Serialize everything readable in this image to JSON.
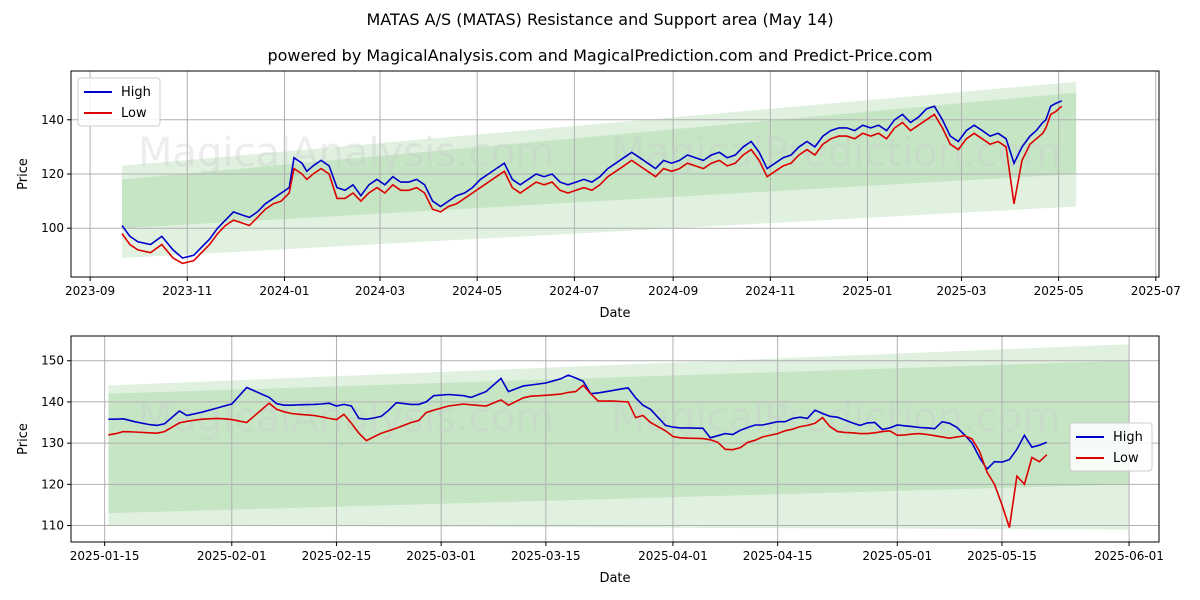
{
  "title": "MATAS A/S (MATAS) Resistance and Support area (May 14)",
  "subtitle": "powered by MagicalAnalysis.com and MagicalPrediction.com and Predict-Price.com",
  "watermarks": [
    "MagicalAnalysis.com",
    "MagicalPrediction.com"
  ],
  "colors": {
    "high": "#0000cc",
    "low": "#dd0000",
    "band": "#2ca02c"
  },
  "chart_data": [
    {
      "type": "line",
      "xlabel": "Date",
      "ylabel": "Price",
      "x_ticks": [
        "2023-09",
        "2023-11",
        "2024-01",
        "2024-03",
        "2024-05",
        "2024-07",
        "2024-09",
        "2024-11",
        "2025-01",
        "2025-03",
        "2025-05",
        "2025-07"
      ],
      "x_tick_days": [
        0,
        61,
        122,
        182,
        243,
        304,
        366,
        427,
        488,
        547,
        608,
        669
      ],
      "xlim_days": [
        -12,
        671
      ],
      "y_ticks": [
        100,
        120,
        140
      ],
      "ylim": [
        82,
        158
      ],
      "legend": [
        "High",
        "Low"
      ],
      "legend_position": "upper left",
      "bands": [
        {
          "x": [
            20,
            619
          ],
          "upper": [
            123,
            154
          ],
          "lower": [
            100,
            120
          ],
          "opacity": 0.15
        },
        {
          "x": [
            20,
            619
          ],
          "upper": [
            118,
            150
          ],
          "lower": [
            89,
            108
          ],
          "opacity": 0.15
        }
      ],
      "series": [
        {
          "name": "High",
          "x": [
            20,
            25,
            30,
            38,
            45,
            52,
            58,
            65,
            70,
            75,
            80,
            85,
            90,
            95,
            100,
            105,
            110,
            115,
            120,
            125,
            128,
            133,
            136,
            140,
            145,
            150,
            155,
            160,
            165,
            170,
            175,
            180,
            185,
            190,
            195,
            200,
            205,
            210,
            215,
            220,
            225,
            230,
            235,
            240,
            245,
            250,
            255,
            260,
            265,
            270,
            275,
            280,
            285,
            290,
            295,
            300,
            305,
            310,
            315,
            320,
            325,
            330,
            335,
            340,
            345,
            350,
            355,
            360,
            365,
            370,
            375,
            380,
            385,
            390,
            395,
            400,
            405,
            410,
            415,
            420,
            425,
            430,
            435,
            440,
            445,
            450,
            455,
            460,
            465,
            470,
            475,
            480,
            485,
            490,
            495,
            500,
            505,
            510,
            515,
            520,
            525,
            530,
            535,
            540,
            545,
            550,
            555,
            560,
            565,
            570,
            575,
            580,
            585,
            590,
            594,
            598,
            600,
            603,
            606,
            610
          ],
          "values": [
            101,
            97,
            95,
            94,
            97,
            92,
            89,
            90,
            93,
            96,
            100,
            103,
            106,
            105,
            104,
            106,
            109,
            111,
            113,
            115,
            126,
            124,
            121,
            123,
            125,
            123,
            115,
            114,
            116,
            112,
            116,
            118,
            116,
            119,
            117,
            117,
            118,
            116,
            110,
            108,
            110,
            112,
            113,
            115,
            118,
            120,
            122,
            124,
            118,
            116,
            118,
            120,
            119,
            120,
            117,
            116,
            117,
            118,
            117,
            119,
            122,
            124,
            126,
            128,
            126,
            124,
            122,
            125,
            124,
            125,
            127,
            126,
            125,
            127,
            128,
            126,
            127,
            130,
            132,
            128,
            122,
            124,
            126,
            127,
            130,
            132,
            130,
            134,
            136,
            137,
            137,
            136,
            138,
            137,
            138,
            136,
            140,
            142,
            139,
            141,
            144,
            145,
            140,
            134,
            132,
            136,
            138,
            136,
            134,
            135,
            133,
            124,
            130,
            134,
            136,
            139,
            140,
            145,
            146,
            147
          ]
        },
        {
          "name": "Low",
          "x": [
            20,
            25,
            30,
            38,
            45,
            52,
            58,
            65,
            70,
            75,
            80,
            85,
            90,
            95,
            100,
            105,
            110,
            115,
            120,
            125,
            128,
            133,
            136,
            140,
            145,
            150,
            155,
            160,
            165,
            170,
            175,
            180,
            185,
            190,
            195,
            200,
            205,
            210,
            215,
            220,
            225,
            230,
            235,
            240,
            245,
            250,
            255,
            260,
            265,
            270,
            275,
            280,
            285,
            290,
            295,
            300,
            305,
            310,
            315,
            320,
            325,
            330,
            335,
            340,
            345,
            350,
            355,
            360,
            365,
            370,
            375,
            380,
            385,
            390,
            395,
            400,
            405,
            410,
            415,
            420,
            425,
            430,
            435,
            440,
            445,
            450,
            455,
            460,
            465,
            470,
            475,
            480,
            485,
            490,
            495,
            500,
            505,
            510,
            515,
            520,
            525,
            530,
            535,
            540,
            545,
            550,
            555,
            560,
            565,
            570,
            575,
            580,
            585,
            590,
            594,
            598,
            600,
            603,
            606,
            610
          ],
          "values": [
            98,
            94,
            92,
            91,
            94,
            89,
            87,
            88,
            91,
            94,
            98,
            101,
            103,
            102,
            101,
            104,
            107,
            109,
            110,
            113,
            122,
            120,
            118,
            120,
            122,
            120,
            111,
            111,
            113,
            110,
            113,
            115,
            113,
            116,
            114,
            114,
            115,
            113,
            107,
            106,
            108,
            109,
            111,
            113,
            115,
            117,
            119,
            121,
            115,
            113,
            115,
            117,
            116,
            117,
            114,
            113,
            114,
            115,
            114,
            116,
            119,
            121,
            123,
            125,
            123,
            121,
            119,
            122,
            121,
            122,
            124,
            123,
            122,
            124,
            125,
            123,
            124,
            127,
            129,
            125,
            119,
            121,
            123,
            124,
            127,
            129,
            127,
            131,
            133,
            134,
            134,
            133,
            135,
            134,
            135,
            133,
            137,
            139,
            136,
            138,
            140,
            142,
            137,
            131,
            129,
            133,
            135,
            133,
            131,
            132,
            130,
            109,
            125,
            131,
            133,
            135,
            137,
            142,
            143,
            145
          ]
        }
      ]
    },
    {
      "type": "line",
      "xlabel": "Date",
      "ylabel": "Price",
      "x_ticks": [
        "2025-01-15",
        "2025-02-01",
        "2025-02-15",
        "2025-03-01",
        "2025-03-15",
        "2025-04-01",
        "2025-04-15",
        "2025-05-01",
        "2025-05-15",
        "2025-06-01"
      ],
      "x_tick_days": [
        0,
        17,
        31,
        45,
        59,
        76,
        90,
        106,
        120,
        137
      ],
      "xlim_days": [
        -4.5,
        141
      ],
      "y_ticks": [
        110,
        120,
        130,
        140,
        150
      ],
      "ylim": [
        106,
        156
      ],
      "legend": [
        "High",
        "Low"
      ],
      "legend_position": "center right",
      "bands": [
        {
          "x": [
            0.5,
            137
          ],
          "upper": [
            144,
            154
          ],
          "lower": [
            113,
            120
          ],
          "opacity": 0.15
        },
        {
          "x": [
            0.5,
            137
          ],
          "upper": [
            142,
            150
          ],
          "lower": [
            110,
            109
          ],
          "opacity": 0.15
        }
      ],
      "series": [
        {
          "name": "High",
          "x": [
            0.5,
            1.5,
            2.5,
            4,
            6,
            7,
            8,
            10,
            11,
            13,
            15,
            16,
            17,
            19,
            22,
            23,
            24,
            25,
            26,
            28,
            29,
            30,
            31,
            32,
            33,
            34,
            35,
            36,
            37,
            38,
            39,
            41,
            42,
            43,
            44,
            46,
            48,
            49,
            51,
            53,
            54,
            56,
            57,
            59,
            61,
            62,
            63,
            64,
            65,
            66,
            68,
            69,
            70,
            71,
            72,
            73,
            75,
            76,
            77,
            78,
            80,
            81,
            82,
            83,
            84,
            85,
            86,
            87,
            88,
            90,
            91,
            92,
            93,
            94,
            95,
            96,
            97,
            98,
            99,
            100,
            101,
            102,
            103,
            104,
            105,
            106,
            107,
            108,
            109,
            110,
            111,
            112,
            113,
            114,
            115,
            116,
            117,
            118,
            119,
            120,
            121,
            122,
            123,
            124,
            125,
            126
          ],
          "values": [
            135.8,
            135.8,
            135.9,
            135.2,
            134.5,
            134.3,
            134.7,
            137.8,
            136.7,
            137.5,
            138.5,
            139.0,
            139.5,
            143.5,
            141.1,
            139.6,
            139.2,
            139.2,
            139.3,
            139.4,
            139.5,
            139.7,
            139.0,
            139.4,
            139.0,
            136.0,
            135.8,
            136.1,
            136.5,
            138.0,
            139.8,
            139.4,
            139.4,
            140.0,
            141.5,
            141.8,
            141.5,
            141.1,
            142.5,
            145.7,
            142.5,
            143.9,
            144.1,
            144.6,
            145.6,
            146.5,
            145.8,
            145.0,
            142.0,
            142.2,
            142.8,
            143.1,
            143.4,
            141.0,
            139.2,
            138.2,
            134.3,
            133.9,
            133.7,
            133.7,
            133.6,
            131.3,
            131.8,
            132.3,
            132.1,
            133.1,
            133.8,
            134.4,
            134.4,
            135.2,
            135.2,
            136.0,
            136.3,
            136.0,
            138.0,
            137.2,
            136.5,
            136.3,
            135.6,
            134.9,
            134.3,
            134.9,
            135.0,
            133.3,
            133.7,
            134.4,
            134.2,
            134.0,
            133.8,
            133.7,
            133.5,
            135.2,
            134.8,
            133.8,
            132.0,
            130.0,
            126.5,
            123.7,
            125.5,
            125.4,
            126.0,
            128.5,
            131.9,
            129.0,
            129.5,
            130.2
          ]
        },
        {
          "name": "Low",
          "x": [
            0.5,
            1.5,
            2.5,
            4,
            6,
            7,
            8,
            10,
            11,
            13,
            15,
            16,
            17,
            19,
            22,
            23,
            24,
            25,
            26,
            28,
            29,
            30,
            31,
            32,
            33,
            34,
            35,
            36,
            37,
            38,
            39,
            41,
            42,
            43,
            44,
            46,
            48,
            49,
            51,
            53,
            54,
            56,
            57,
            59,
            61,
            62,
            63,
            64,
            65,
            66,
            68,
            69,
            70,
            71,
            72,
            73,
            75,
            76,
            77,
            78,
            80,
            81,
            82,
            83,
            84,
            85,
            86,
            87,
            88,
            90,
            91,
            92,
            93,
            94,
            95,
            96,
            97,
            98,
            99,
            100,
            101,
            102,
            103,
            104,
            105,
            106,
            107,
            108,
            109,
            110,
            111,
            112,
            113,
            114,
            115,
            116,
            117,
            118,
            119,
            120,
            121,
            122,
            123,
            124,
            125,
            126
          ],
          "values": [
            132.0,
            132.3,
            132.8,
            132.7,
            132.5,
            132.4,
            132.8,
            134.9,
            135.3,
            135.8,
            136.0,
            135.9,
            135.7,
            135.0,
            139.7,
            138.2,
            137.6,
            137.2,
            137.0,
            136.7,
            136.4,
            136.0,
            135.7,
            137.0,
            134.8,
            132.4,
            130.6,
            131.5,
            132.4,
            133.0,
            133.6,
            135.0,
            135.5,
            137.4,
            138.0,
            139.0,
            139.5,
            139.3,
            139.0,
            140.5,
            139.2,
            141.0,
            141.4,
            141.6,
            141.9,
            142.3,
            142.5,
            144.0,
            142.0,
            140.2,
            140.2,
            140.1,
            140.0,
            136.2,
            136.7,
            135.0,
            133.0,
            131.6,
            131.3,
            131.2,
            131.1,
            130.8,
            130.2,
            128.5,
            128.4,
            128.9,
            130.2,
            130.7,
            131.5,
            132.3,
            133.0,
            133.4,
            134.0,
            134.3,
            134.8,
            136.2,
            134.0,
            132.8,
            132.6,
            132.5,
            132.3,
            132.3,
            132.5,
            132.8,
            133.0,
            131.9,
            132.0,
            132.2,
            132.3,
            132.1,
            131.8,
            131.5,
            131.2,
            131.5,
            131.8,
            131.0,
            128.0,
            123.0,
            120.0,
            115.0,
            109.5,
            122.0,
            120.0,
            126.5,
            125.5,
            127.2
          ]
        }
      ]
    }
  ]
}
